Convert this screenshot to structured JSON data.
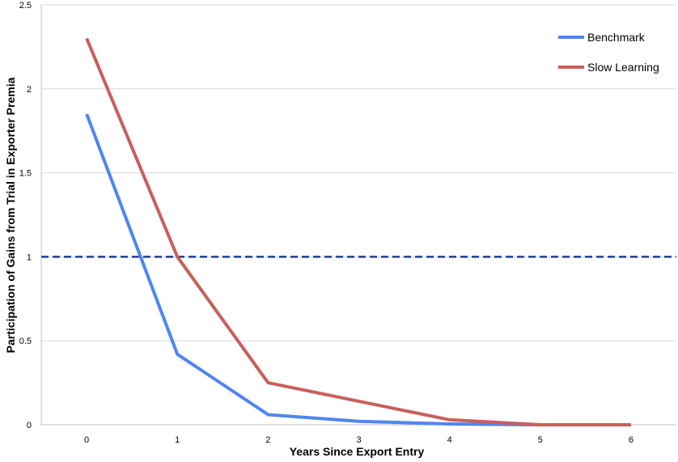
{
  "chart_data": {
    "type": "line",
    "title": "",
    "xlabel": "Years Since Export Entry",
    "ylabel": "Participation of Gains from Trial in Exporter Premia",
    "x": [
      0,
      1,
      2,
      3,
      4,
      5,
      6
    ],
    "x_tick_labels": [
      "0",
      "1",
      "2",
      "3",
      "4",
      "5",
      "6"
    ],
    "y_tick_labels": [
      "0",
      "0.5",
      "1",
      "1.5",
      "2",
      "2.5"
    ],
    "y_ticks": [
      0,
      0.5,
      1,
      1.5,
      2,
      2.5
    ],
    "ylim": [
      0,
      2.5
    ],
    "xlim": [
      -0.5,
      6.5
    ],
    "grid": "horizontal",
    "legend_position": "top-right",
    "series": [
      {
        "name": "Benchmark",
        "color": "#4f86f0",
        "values": [
          1.85,
          0.42,
          0.06,
          0.02,
          0.005,
          0.0,
          0.0
        ]
      },
      {
        "name": "Slow Learning",
        "color": "#c7605c",
        "values": [
          2.3,
          1.0,
          0.25,
          0.14,
          0.03,
          0.0,
          0.0
        ]
      }
    ],
    "reference_line": {
      "y": 1,
      "color": "#1f3d99",
      "style": "dashed"
    }
  }
}
